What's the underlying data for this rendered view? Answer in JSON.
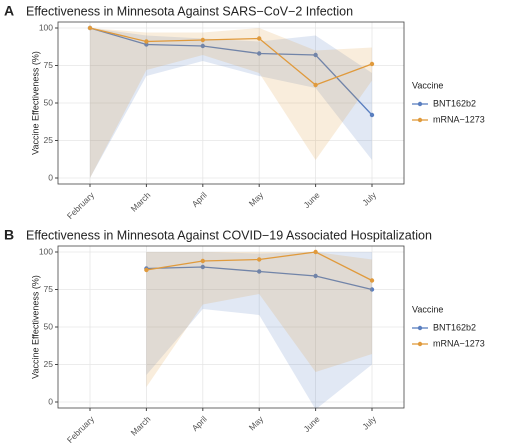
{
  "chart_data": [
    {
      "type": "line",
      "panel_label": "A",
      "title": "Effectiveness in Minnesota Against SARS−CoV−2 Infection",
      "y_label": "Vaccine Effectiveness (%)",
      "legend_title": "Vaccine",
      "grid": true,
      "categories": [
        "February",
        "March",
        "April",
        "May",
        "June",
        "July"
      ],
      "ylim": [
        -4,
        104
      ],
      "yticks": [
        0,
        25,
        50,
        75,
        100
      ],
      "series": [
        {
          "name": "BNT162b2",
          "color": "#5a7fc0",
          "values": [
            100,
            89,
            88,
            83,
            82,
            42
          ],
          "lower": [
            0,
            68,
            78,
            68,
            60,
            12
          ],
          "upper": [
            100,
            95,
            93,
            91,
            95,
            70
          ]
        },
        {
          "name": "mRNA−1273",
          "color": "#e09a3c",
          "values": [
            100,
            91,
            92,
            93,
            62,
            76
          ],
          "lower": [
            0,
            72,
            82,
            70,
            12,
            65
          ],
          "upper": [
            100,
            97,
            97,
            100,
            85,
            87
          ]
        }
      ]
    },
    {
      "type": "line",
      "panel_label": "B",
      "title": "Effectiveness in Minnesota Against COVID−19 Associated Hospitalization",
      "y_label": "Vaccine Effectiveness (%)",
      "legend_title": "Vaccine",
      "grid": true,
      "categories": [
        "February",
        "March",
        "April",
        "May",
        "June",
        "July"
      ],
      "ylim": [
        -4,
        104
      ],
      "yticks": [
        0,
        25,
        50,
        75,
        100
      ],
      "series": [
        {
          "name": "BNT162b2",
          "color": "#5a7fc0",
          "values": [
            null,
            89,
            90,
            87,
            84,
            75
          ],
          "lower": [
            null,
            18,
            62,
            58,
            -5,
            25
          ],
          "upper": [
            null,
            100,
            100,
            99,
            100,
            100
          ]
        },
        {
          "name": "mRNA−1273",
          "color": "#e09a3c",
          "values": [
            null,
            88,
            94,
            95,
            100,
            81
          ],
          "lower": [
            null,
            10,
            65,
            72,
            20,
            32
          ],
          "upper": [
            null,
            100,
            100,
            100,
            100,
            95
          ]
        }
      ]
    }
  ]
}
